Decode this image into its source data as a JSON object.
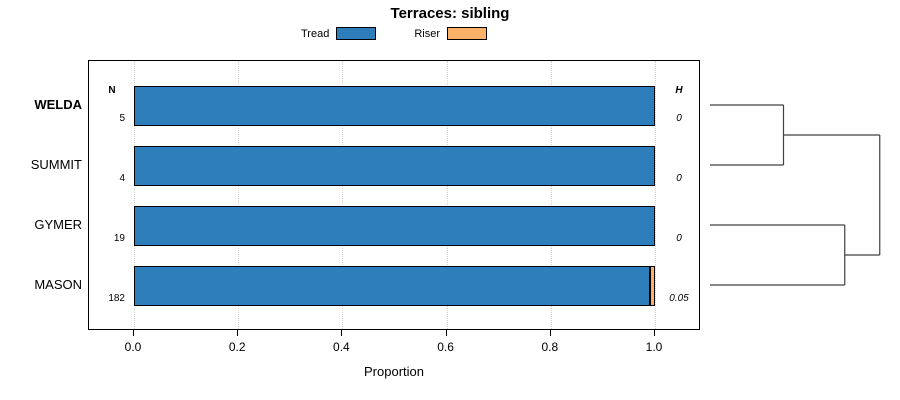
{
  "title": "Terraces: sibling",
  "xlabel": "Proportion",
  "n_header": "N",
  "h_header": "H",
  "legend": [
    {
      "label": "Tread",
      "color": "#2E7EBB"
    },
    {
      "label": "Riser",
      "color": "#FBB268"
    }
  ],
  "chart_data": {
    "type": "bar",
    "orientation": "horizontal",
    "stacked": true,
    "title": "Terraces: sibling",
    "xlabel": "Proportion",
    "xlim": [
      0.0,
      1.0
    ],
    "xticks": [
      0.0,
      0.2,
      0.4,
      0.6,
      0.8,
      1.0
    ],
    "grid": "dotted-vertical",
    "legend_position": "top",
    "categories": [
      "WELDA",
      "SUMMIT",
      "GYMER",
      "MASON"
    ],
    "category_bold": [
      true,
      false,
      false,
      false
    ],
    "n_values": [
      5,
      4,
      19,
      182
    ],
    "h_values": [
      "0",
      "0",
      "0",
      "0.05"
    ],
    "series": [
      {
        "name": "Tread",
        "color": "#2E7EBB",
        "values": [
          1.0,
          1.0,
          1.0,
          0.99
        ]
      },
      {
        "name": "Riser",
        "color": "#FBB268",
        "values": [
          0.0,
          0.0,
          0.0,
          0.01
        ]
      }
    ],
    "dendrogram": {
      "leaves": [
        "WELDA",
        "SUMMIT",
        "GYMER",
        "MASON"
      ],
      "merges": [
        {
          "children": [
            0,
            1
          ],
          "height": 0.42
        },
        {
          "children": [
            2,
            3
          ],
          "height": 0.77
        },
        {
          "children": [
            4,
            5
          ],
          "height": 0.97
        }
      ]
    }
  }
}
